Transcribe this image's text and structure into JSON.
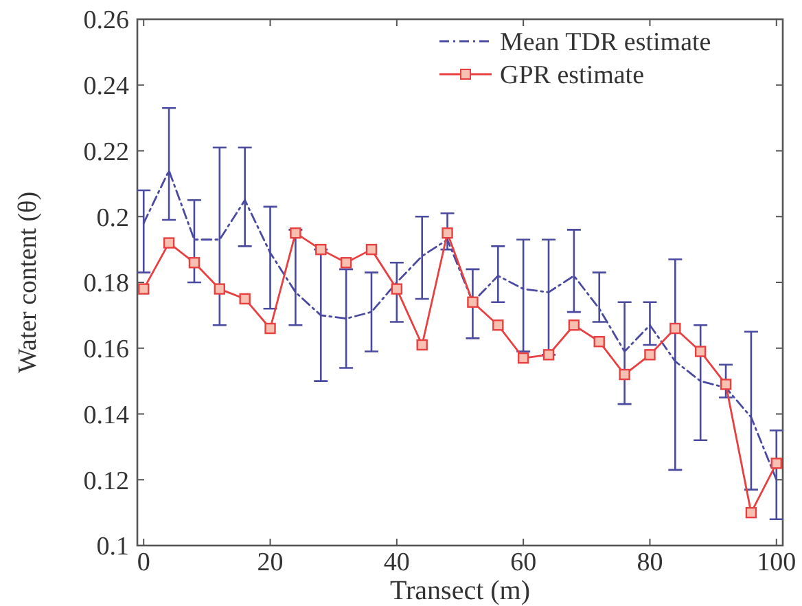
{
  "chart_data": {
    "type": "line",
    "xlabel": "Transect (m)",
    "ylabel": "Water content (θ)",
    "x": [
      0,
      4,
      8,
      12,
      16,
      20,
      24,
      28,
      32,
      36,
      40,
      44,
      48,
      52,
      56,
      60,
      64,
      68,
      72,
      76,
      80,
      84,
      88,
      92,
      96,
      100
    ],
    "xlim": [
      -1,
      101
    ],
    "xticks": [
      0,
      20,
      40,
      60,
      80,
      100
    ],
    "ylim": [
      0.1,
      0.26
    ],
    "yticks": [
      0.1,
      0.12,
      0.14,
      0.16,
      0.18,
      0.2,
      0.22,
      0.24,
      0.26
    ],
    "legend": "top right",
    "grid": false,
    "series": [
      {
        "name": "Mean TDR estimate",
        "color": "#4a4aa0",
        "line_style": "dashed",
        "marker": "none",
        "values": [
          0.198,
          0.214,
          0.193,
          0.193,
          0.205,
          0.189,
          0.177,
          0.17,
          0.169,
          0.171,
          0.18,
          0.188,
          0.193,
          0.174,
          0.182,
          0.178,
          0.177,
          0.182,
          0.172,
          0.159,
          0.167,
          0.156,
          0.15,
          0.148,
          0.139,
          0.12
        ],
        "errors": [
          [
            0.183,
            0.208
          ],
          [
            0.199,
            0.233
          ],
          [
            0.18,
            0.205
          ],
          [
            0.167,
            0.221
          ],
          [
            0.191,
            0.221
          ],
          [
            0.172,
            0.203
          ],
          [
            0.167,
            0.196
          ],
          [
            0.15,
            0.19
          ],
          [
            0.154,
            0.184
          ],
          [
            0.159,
            0.183
          ],
          [
            0.168,
            0.186
          ],
          [
            0.175,
            0.2
          ],
          [
            0.19,
            0.201
          ],
          [
            0.163,
            0.184
          ],
          [
            0.174,
            0.191
          ],
          [
            0.159,
            0.193
          ],
          [
            0.158,
            0.193
          ],
          [
            0.171,
            0.196
          ],
          [
            0.168,
            0.183
          ],
          [
            0.143,
            0.174
          ],
          [
            0.161,
            0.174
          ],
          [
            0.123,
            0.187
          ],
          [
            0.132,
            0.167
          ],
          [
            0.145,
            0.155
          ],
          [
            0.117,
            0.165
          ],
          [
            0.108,
            0.135
          ]
        ]
      },
      {
        "name": "GPR estimate",
        "color": "#e84040",
        "line_style": "solid",
        "marker": "square",
        "values": [
          0.178,
          0.192,
          0.186,
          0.178,
          0.175,
          0.166,
          0.195,
          0.19,
          0.186,
          0.19,
          0.178,
          0.161,
          0.195,
          0.174,
          0.167,
          0.157,
          0.158,
          0.167,
          0.162,
          0.152,
          0.158,
          0.166,
          0.159,
          0.149,
          0.11,
          0.125
        ]
      }
    ]
  }
}
